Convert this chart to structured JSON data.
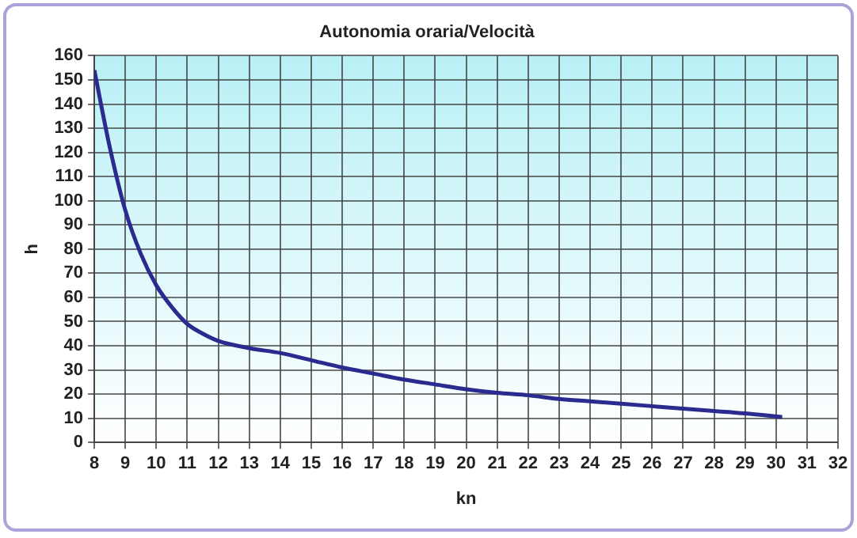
{
  "chart_data": {
    "type": "line",
    "title": "Autonomia oraria/Velocità",
    "xlabel": "kn",
    "ylabel": "h",
    "series": [
      {
        "color": "#2b2b8f",
        "x": [
          8,
          8.5,
          9,
          9.5,
          10,
          10.5,
          11,
          11.5,
          12,
          13,
          14,
          15,
          16,
          17,
          18,
          19,
          20,
          21,
          22,
          23,
          24,
          25,
          26,
          27,
          28,
          29,
          30.2
        ],
        "values": [
          154,
          122,
          96,
          78,
          65,
          56,
          49,
          45,
          42,
          39,
          37,
          34,
          31,
          28.5,
          26,
          24,
          22,
          20.5,
          19.5,
          18,
          17,
          16,
          15,
          14,
          13,
          12,
          10.5
        ]
      }
    ],
    "xlim": [
      8,
      32
    ],
    "xticks": [
      8,
      9,
      10,
      11,
      12,
      13,
      14,
      15,
      16,
      17,
      18,
      19,
      20,
      21,
      22,
      23,
      24,
      25,
      26,
      27,
      28,
      29,
      30,
      31,
      32
    ],
    "ylim": [
      0,
      160
    ],
    "yticks": [
      0,
      10,
      20,
      30,
      40,
      50,
      60,
      70,
      80,
      90,
      100,
      110,
      120,
      130,
      140,
      150,
      160
    ],
    "grid": true,
    "legend": false,
    "marker": "none",
    "line_style": "solid"
  }
}
